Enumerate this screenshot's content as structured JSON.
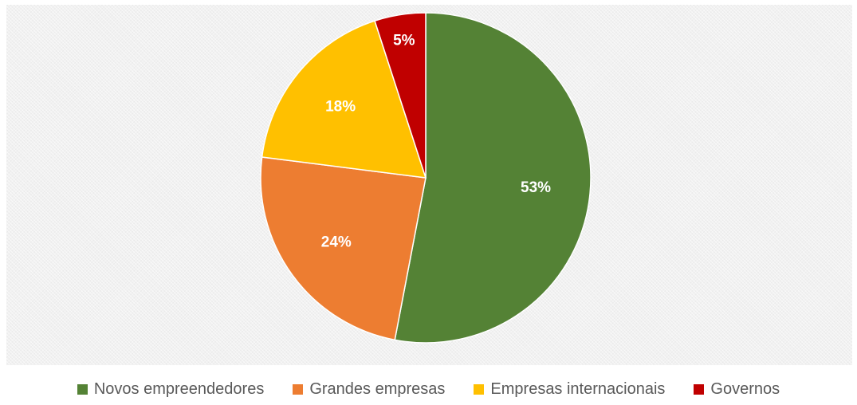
{
  "chart_data": {
    "type": "pie",
    "title": "",
    "start_angle_deg": 0,
    "direction": "clockwise",
    "legend_position": "bottom",
    "slices": [
      {
        "label": "Novos empreendedores",
        "value": 53,
        "display": "53%",
        "color": "#548235"
      },
      {
        "label": "Grandes empresas",
        "value": 24,
        "display": "24%",
        "color": "#ed7d31"
      },
      {
        "label": "Empresas internacionais",
        "value": 18,
        "display": "18%",
        "color": "#ffc000"
      },
      {
        "label": "Governos",
        "value": 5,
        "display": "5%",
        "color": "#c00000"
      }
    ]
  }
}
